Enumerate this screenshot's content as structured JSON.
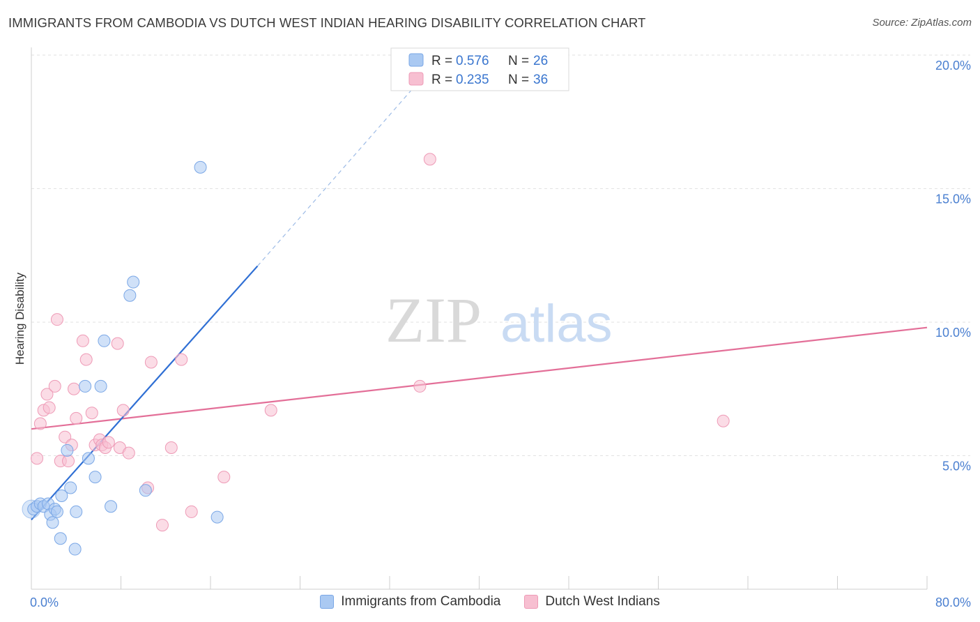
{
  "title": "IMMIGRANTS FROM CAMBODIA VS DUTCH WEST INDIAN HEARING DISABILITY CORRELATION CHART",
  "source": "Source: ZipAtlas.com",
  "watermark": {
    "zip": "ZIP",
    "atlas": "atlas"
  },
  "colors": {
    "blue_fill": "#aac9f2",
    "blue_stroke": "#7aa7e6",
    "blue_line": "#2f6fd4",
    "pink_fill": "#f7bfd1",
    "pink_stroke": "#ee9ab6",
    "pink_line": "#e36f98",
    "axis_text": "#4a7fd0"
  },
  "legend_top": {
    "rows": [
      {
        "r_label": "R = ",
        "r_value": "0.576",
        "n_label": "N = ",
        "n_value": "26"
      },
      {
        "r_label": "R = ",
        "r_value": "0.235",
        "n_label": "N = ",
        "n_value": "36"
      }
    ]
  },
  "legend_bottom": {
    "items": [
      {
        "label": "Immigrants from Cambodia"
      },
      {
        "label": "Dutch West Indians"
      }
    ]
  },
  "chart_data": {
    "type": "scatter",
    "xlabel": "",
    "ylabel": "Hearing Disability",
    "xlim": [
      0,
      80
    ],
    "ylim": [
      0,
      20
    ],
    "x_tick_labels": [
      "0.0%",
      "80.0%"
    ],
    "y_ticks": [
      5,
      10,
      15,
      20
    ],
    "y_tick_labels": [
      "5.0%",
      "10.0%",
      "15.0%",
      "20.0%"
    ],
    "series": [
      {
        "name": "Immigrants from Cambodia",
        "color": "#7aa7e6",
        "r": 0.576,
        "n": 26,
        "points": [
          [
            0.2,
            3.0
          ],
          [
            0.5,
            3.1
          ],
          [
            0.8,
            3.2
          ],
          [
            1.1,
            3.1
          ],
          [
            1.5,
            3.2
          ],
          [
            1.7,
            2.8
          ],
          [
            1.9,
            2.5
          ],
          [
            2.1,
            3.0
          ],
          [
            2.3,
            2.9
          ],
          [
            2.6,
            1.9
          ],
          [
            2.7,
            3.5
          ],
          [
            3.2,
            5.2
          ],
          [
            3.5,
            3.8
          ],
          [
            3.9,
            1.5
          ],
          [
            4.0,
            2.9
          ],
          [
            4.8,
            7.6
          ],
          [
            5.1,
            4.9
          ],
          [
            5.7,
            4.2
          ],
          [
            6.2,
            7.6
          ],
          [
            6.5,
            9.3
          ],
          [
            7.1,
            3.1
          ],
          [
            8.8,
            11.0
          ],
          [
            9.1,
            11.5
          ],
          [
            10.2,
            3.7
          ],
          [
            15.1,
            15.8
          ],
          [
            16.6,
            2.7
          ]
        ],
        "trend": {
          "x0": 0,
          "y0": 2.6,
          "x1": 20.2,
          "y1": 12.1
        },
        "trend_dashed": {
          "x0": 20.2,
          "y0": 12.1,
          "x1": 34.8,
          "y1": 19.1
        }
      },
      {
        "name": "Dutch West Indians",
        "color": "#ee9ab6",
        "r": 0.235,
        "n": 36,
        "points": [
          [
            0.5,
            4.9
          ],
          [
            0.8,
            6.2
          ],
          [
            1.1,
            6.7
          ],
          [
            1.4,
            7.3
          ],
          [
            1.6,
            6.8
          ],
          [
            2.1,
            7.6
          ],
          [
            2.3,
            10.1
          ],
          [
            2.6,
            4.8
          ],
          [
            3.0,
            5.7
          ],
          [
            3.3,
            4.8
          ],
          [
            3.6,
            5.4
          ],
          [
            3.8,
            7.5
          ],
          [
            4.0,
            6.4
          ],
          [
            4.6,
            9.3
          ],
          [
            4.9,
            8.6
          ],
          [
            5.4,
            6.6
          ],
          [
            5.7,
            5.4
          ],
          [
            6.1,
            5.6
          ],
          [
            6.3,
            5.4
          ],
          [
            6.6,
            5.3
          ],
          [
            6.9,
            5.5
          ],
          [
            7.7,
            9.2
          ],
          [
            7.9,
            5.3
          ],
          [
            8.2,
            6.7
          ],
          [
            8.7,
            5.1
          ],
          [
            10.4,
            3.8
          ],
          [
            10.7,
            8.5
          ],
          [
            11.7,
            2.4
          ],
          [
            12.5,
            5.3
          ],
          [
            13.4,
            8.6
          ],
          [
            14.3,
            2.9
          ],
          [
            17.2,
            4.2
          ],
          [
            21.4,
            6.7
          ],
          [
            34.7,
            7.6
          ],
          [
            35.6,
            16.1
          ],
          [
            61.8,
            6.3
          ]
        ],
        "trend": {
          "x0": 0,
          "y0": 6.0,
          "x1": 80,
          "y1": 9.8
        }
      }
    ]
  }
}
